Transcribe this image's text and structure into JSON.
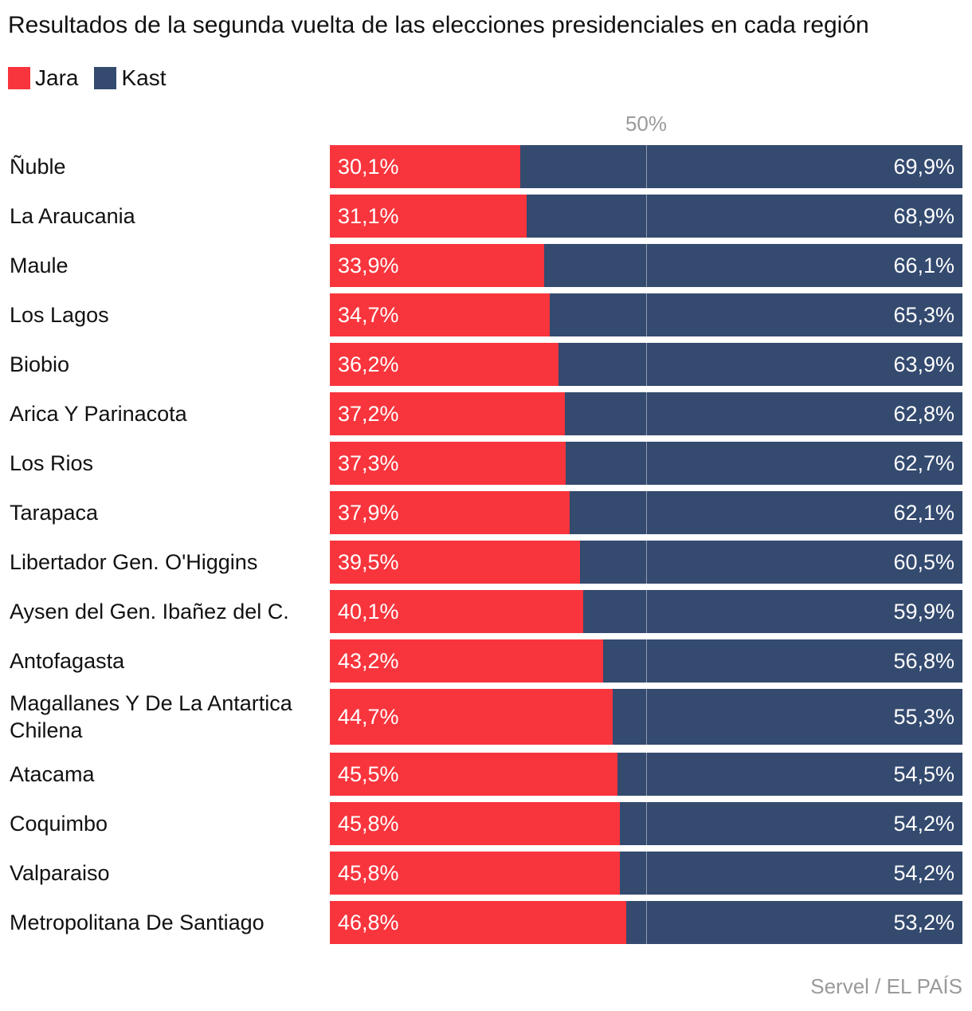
{
  "chart_data": {
    "type": "bar",
    "orientation": "horizontal",
    "stacked": true,
    "title": "Resultados de la segunda vuelta de las elecciones presidenciales en cada región",
    "xlim": [
      0,
      100
    ],
    "reference_line": {
      "value": 50,
      "label": "50%"
    },
    "categories": [
      "Ñuble",
      "La Araucania",
      "Maule",
      "Los Lagos",
      "Biobio",
      "Arica Y Parinacota",
      "Los Rios",
      "Tarapaca",
      "Libertador Gen. O'Higgins",
      "Aysen del Gen. Ibañez del C.",
      "Antofagasta",
      "Magallanes Y De La Antartica Chilena",
      "Atacama",
      "Coquimbo",
      "Valparaiso",
      "Metropolitana De Santiago"
    ],
    "series": [
      {
        "name": "Jara",
        "color": "#f8353d",
        "values": [
          30.1,
          31.1,
          33.9,
          34.7,
          36.2,
          37.2,
          37.3,
          37.9,
          39.5,
          40.1,
          43.2,
          44.7,
          45.5,
          45.8,
          45.8,
          46.8
        ],
        "labels": [
          "30,1%",
          "31,1%",
          "33,9%",
          "34,7%",
          "36,2%",
          "37,2%",
          "37,3%",
          "37,9%",
          "39,5%",
          "40,1%",
          "43,2%",
          "44,7%",
          "45,5%",
          "45,8%",
          "45,8%",
          "46,8%"
        ]
      },
      {
        "name": "Kast",
        "color": "#344a6f",
        "values": [
          69.9,
          68.9,
          66.1,
          65.3,
          63.9,
          62.8,
          62.7,
          62.1,
          60.5,
          59.9,
          56.8,
          55.3,
          54.5,
          54.2,
          54.2,
          53.2
        ],
        "labels": [
          "69,9%",
          "68,9%",
          "66,1%",
          "65,3%",
          "63,9%",
          "62,8%",
          "62,7%",
          "62,1%",
          "60,5%",
          "59,9%",
          "56,8%",
          "55,3%",
          "54,5%",
          "54,2%",
          "54,2%",
          "53,2%"
        ]
      }
    ],
    "source": "Servel / EL PAÍS"
  }
}
